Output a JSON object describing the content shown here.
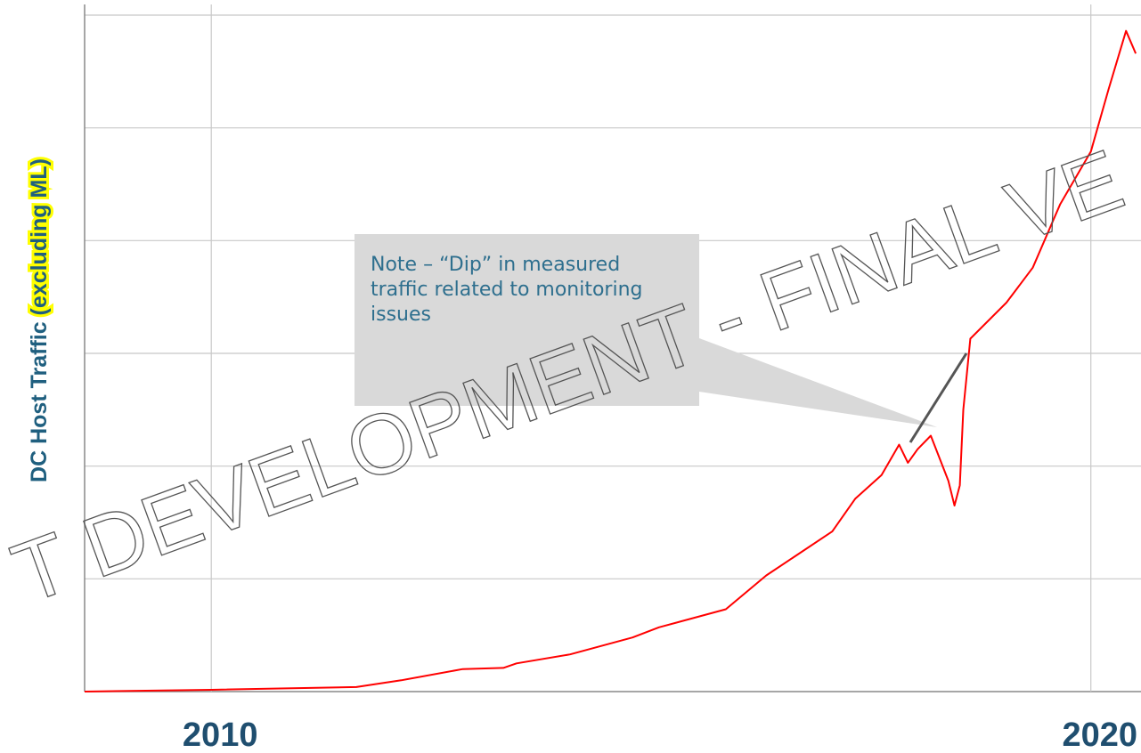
{
  "chart_data": {
    "type": "line",
    "ylabel": [
      "DC Host Traffic ",
      "(excluding ML)"
    ],
    "annotation": "Note – “Dip” in measured traffic related to monitoring issues",
    "watermark": "T DEVELOPMENT - FINAL VE",
    "xlim": [
      2008.56,
      2020.57
    ],
    "xticks": [
      2010,
      2020
    ],
    "ylim": [
      0,
      6
    ],
    "yticks": [
      0,
      1,
      2,
      3,
      4,
      5,
      6
    ],
    "grid": true,
    "series": [
      {
        "color": "#ff0000",
        "x": [
          2008.56,
          2010,
          2011.65,
          2012.16,
          2012.86,
          2013.32,
          2013.47,
          2014.08,
          2014.79,
          2015.09,
          2015.85,
          2016.31,
          2017.06,
          2017.32,
          2017.62,
          2017.82,
          2017.92,
          2018.03,
          2018.18,
          2018.38,
          2018.45,
          2018.51,
          2018.55,
          2018.63,
          2019.04,
          2019.34,
          2019.65,
          2020.0,
          2020.2,
          2020.4,
          2020.51
        ],
        "values": [
          0,
          0.016,
          0.04,
          0.1,
          0.2,
          0.21,
          0.25,
          0.33,
          0.48,
          0.57,
          0.73,
          1.03,
          1.42,
          1.71,
          1.92,
          2.19,
          2.03,
          2.15,
          2.27,
          1.87,
          1.65,
          1.83,
          2.5,
          3.13,
          3.45,
          3.76,
          4.32,
          4.79,
          5.34,
          5.86,
          5.66
        ]
      }
    ]
  }
}
